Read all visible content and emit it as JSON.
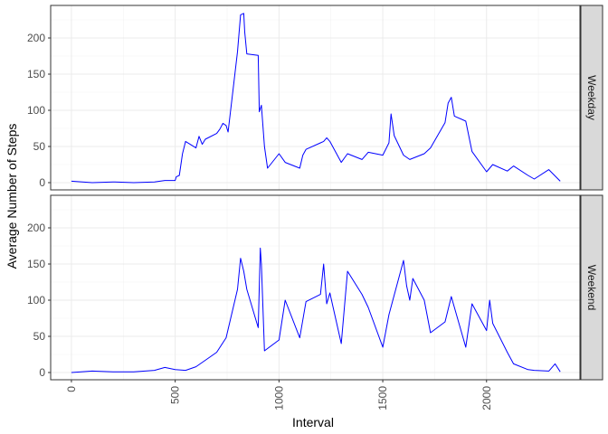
{
  "chart_data": {
    "type": "line",
    "xlabel": "Interval",
    "ylabel": "Average Number of Steps",
    "xlim": [
      -100,
      2450
    ],
    "ylim": [
      -10,
      245
    ],
    "x_ticks": [
      0,
      500,
      1000,
      1500,
      2000
    ],
    "y_ticks": [
      0,
      50,
      100,
      150,
      200
    ],
    "grid": true,
    "line_color": "#0000FF",
    "panels": [
      {
        "strip_label": "Weekday",
        "x": [
          0,
          100,
          200,
          300,
          400,
          450,
          500,
          505,
          520,
          535,
          550,
          600,
          615,
          630,
          645,
          700,
          715,
          730,
          745,
          755,
          800,
          815,
          830,
          835,
          845,
          900,
          905,
          915,
          930,
          945,
          1000,
          1030,
          1100,
          1115,
          1130,
          1200,
          1215,
          1230,
          1245,
          1300,
          1330,
          1400,
          1430,
          1500,
          1530,
          1540,
          1555,
          1600,
          1630,
          1700,
          1730,
          1800,
          1815,
          1830,
          1845,
          1900,
          1930,
          2000,
          2030,
          2100,
          2130,
          2200,
          2230,
          2300,
          2355
        ],
        "y": [
          2,
          0,
          1,
          0,
          1,
          3,
          3,
          8,
          10,
          40,
          57,
          48,
          64,
          53,
          60,
          68,
          74,
          82,
          79,
          70,
          181,
          232,
          234,
          208,
          178,
          176,
          98,
          107,
          50,
          20,
          40,
          28,
          20,
          38,
          46,
          55,
          57,
          62,
          57,
          28,
          40,
          32,
          42,
          38,
          55,
          95,
          65,
          38,
          32,
          40,
          48,
          83,
          110,
          118,
          92,
          85,
          43,
          15,
          25,
          16,
          23,
          10,
          5,
          18,
          2
        ]
      },
      {
        "strip_label": "Weekend",
        "x": [
          0,
          100,
          200,
          300,
          400,
          450,
          500,
          550,
          600,
          650,
          700,
          745,
          800,
          815,
          830,
          845,
          900,
          910,
          915,
          930,
          1000,
          1030,
          1100,
          1130,
          1200,
          1215,
          1230,
          1245,
          1300,
          1330,
          1400,
          1430,
          1500,
          1530,
          1600,
          1615,
          1630,
          1645,
          1700,
          1730,
          1800,
          1830,
          1900,
          1930,
          2000,
          2015,
          2030,
          2100,
          2130,
          2200,
          2230,
          2300,
          2330,
          2355
        ],
        "y": [
          0,
          2,
          1,
          1,
          3,
          7,
          4,
          3,
          8,
          18,
          28,
          48,
          115,
          158,
          140,
          115,
          62,
          172,
          150,
          30,
          45,
          100,
          48,
          98,
          108,
          150,
          95,
          110,
          40,
          140,
          108,
          90,
          35,
          80,
          155,
          120,
          100,
          130,
          100,
          55,
          70,
          105,
          35,
          95,
          58,
          100,
          68,
          28,
          12,
          4,
          3,
          2,
          12,
          1
        ]
      }
    ]
  }
}
